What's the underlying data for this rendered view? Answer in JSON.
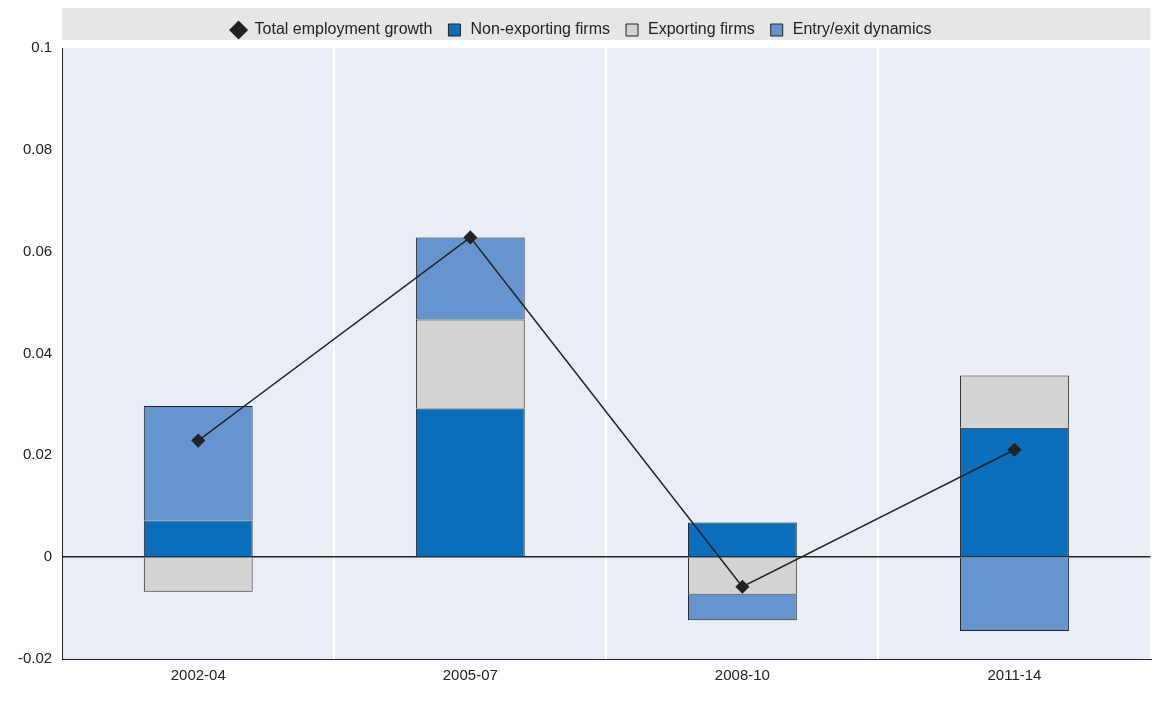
{
  "chart_data": {
    "type": "bar",
    "stacked": true,
    "categories": [
      "2002-04",
      "2005-07",
      "2008-10",
      "2011-14"
    ],
    "series": [
      {
        "name": "Non-exporting firms",
        "color": "#0a6ebd",
        "values": [
          0.0072,
          0.0292,
          0.0068,
          0.0254
        ]
      },
      {
        "name": "Exporting firms",
        "color": "#d3d3d3",
        "values": [
          -0.0068,
          0.0175,
          -0.0074,
          0.0103
        ]
      },
      {
        "name": "Entry/exit dynamics",
        "color": "#6694cf",
        "values": [
          0.0225,
          0.0161,
          -0.005,
          -0.0145
        ]
      },
      {
        "name": "Total employment growth",
        "type": "line",
        "color": "#222222",
        "marker": "diamond",
        "values": [
          0.0229,
          0.0628,
          -0.0058,
          0.0211
        ]
      }
    ],
    "ylim": [
      -0.02,
      0.1
    ],
    "yticks": [
      {
        "value": -0.02,
        "label": "-0.02"
      },
      {
        "value": 0,
        "label": "0"
      },
      {
        "value": 0.02,
        "label": "0.02"
      },
      {
        "value": 0.04,
        "label": "0.04"
      },
      {
        "value": 0.06,
        "label": "0.06"
      },
      {
        "value": 0.08,
        "label": "0.08"
      },
      {
        "value": 0.1,
        "label": "0.1"
      }
    ],
    "grid": "x",
    "legend": "top"
  }
}
